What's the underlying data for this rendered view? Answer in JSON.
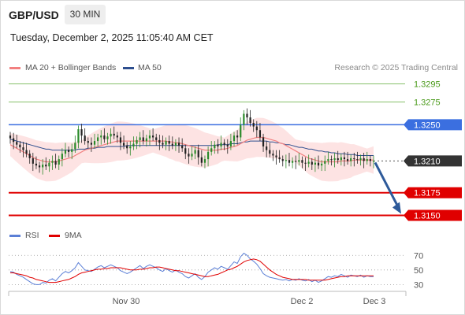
{
  "header": {
    "pair": "GBP/USD",
    "timeframe": "30 MIN",
    "datetime": "Tuesday, December 2, 2025 11:05:40 AM CET"
  },
  "legend": {
    "ma20": "MA 20 + Bollinger Bands",
    "ma50": "MA 50",
    "credit": "Research © 2025 Trading Central"
  },
  "rsi_legend": {
    "rsi": "RSI",
    "ma9": "9MA"
  },
  "colors": {
    "ma20": "#f28080",
    "ma50": "#2e4f8f",
    "bollinger": "#fde0e0",
    "resistance": "#86c06a",
    "pivot_blue": "#3b6fe0",
    "support": "#e00000",
    "current": "#333333",
    "candle_up": "#2a8a2a",
    "candle_down": "#222222",
    "rsi": "#5b7fd6",
    "rsi_ma": "#e00000",
    "arrow": "#2e5a9a"
  },
  "chart_data": [
    {
      "type": "candlestick",
      "title": "",
      "y_range": [
        1.314,
        1.3305
      ],
      "levels": [
        {
          "label": "1.3295",
          "value": 1.3295,
          "kind": "resistance"
        },
        {
          "label": "1.3275",
          "value": 1.3275,
          "kind": "resistance"
        },
        {
          "label": "1.3250",
          "value": 1.325,
          "kind": "pivot"
        },
        {
          "label": "1.3210",
          "value": 1.321,
          "kind": "current"
        },
        {
          "label": "1.3175",
          "value": 1.3175,
          "kind": "support"
        },
        {
          "label": "1.3150",
          "value": 1.315,
          "kind": "support"
        }
      ],
      "x_ticks": [
        "Nov 30",
        "Dec 2",
        "Dec 3"
      ],
      "close": [
        1.3235,
        1.3231,
        1.3228,
        1.3225,
        1.3222,
        1.3218,
        1.3213,
        1.3207,
        1.3205,
        1.3203,
        1.3206,
        1.3204,
        1.3208,
        1.321,
        1.3206,
        1.3212,
        1.3218,
        1.3222,
        1.322,
        1.3223,
        1.323,
        1.3245,
        1.3238,
        1.3232,
        1.323,
        1.3228,
        1.3232,
        1.3236,
        1.3238,
        1.3234,
        1.3237,
        1.324,
        1.3238,
        1.3236,
        1.323,
        1.3227,
        1.3224,
        1.3226,
        1.3229,
        1.3233,
        1.3236,
        1.3232,
        1.3235,
        1.3238,
        1.3236,
        1.3233,
        1.323,
        1.3228,
        1.3232,
        1.3229,
        1.3227,
        1.323,
        1.3227,
        1.3224,
        1.3218,
        1.3215,
        1.3218,
        1.3222,
        1.3214,
        1.3208,
        1.3212,
        1.322,
        1.3224,
        1.3228,
        1.3226,
        1.323,
        1.3228,
        1.3226,
        1.3232,
        1.3238,
        1.3236,
        1.325,
        1.3262,
        1.3258,
        1.3252,
        1.3248,
        1.3244,
        1.3236,
        1.3226,
        1.3222,
        1.3218,
        1.3216,
        1.3214,
        1.3212,
        1.321,
        1.3211,
        1.3208,
        1.321,
        1.3209,
        1.3211,
        1.3208,
        1.3207,
        1.3209,
        1.3206,
        1.3208,
        1.3205,
        1.3207,
        1.321,
        1.3212,
        1.3211,
        1.3213,
        1.3211,
        1.3214,
        1.3212,
        1.321,
        1.3213,
        1.3212,
        1.3211,
        1.3213,
        1.321,
        1.3212,
        1.321,
        1.321
      ],
      "ma20": [
        1.3228,
        1.3226,
        1.3224,
        1.3222,
        1.322,
        1.3218,
        1.3216,
        1.3214,
        1.3212,
        1.3211,
        1.321,
        1.3209,
        1.3209,
        1.3209,
        1.3209,
        1.321,
        1.3211,
        1.3212,
        1.3213,
        1.3214,
        1.3216,
        1.3218,
        1.322,
        1.3222,
        1.3223,
        1.3224,
        1.3225,
        1.3226,
        1.3227,
        1.3228,
        1.3229,
        1.323,
        1.3231,
        1.3232,
        1.3232,
        1.3232,
        1.3232,
        1.3232,
        1.3232,
        1.3232,
        1.3232,
        1.3232,
        1.3232,
        1.3232,
        1.3232,
        1.3232,
        1.3232,
        1.3232,
        1.3232,
        1.3231,
        1.3231,
        1.323,
        1.323,
        1.3229,
        1.3228,
        1.3227,
        1.3226,
        1.3225,
        1.3224,
        1.3223,
        1.3222,
        1.3222,
        1.3222,
        1.3222,
        1.3222,
        1.3223,
        1.3223,
        1.3224,
        1.3225,
        1.3226,
        1.3227,
        1.3229,
        1.3231,
        1.3233,
        1.3234,
        1.3235,
        1.3236,
        1.3236,
        1.3236,
        1.3235,
        1.3234,
        1.3233,
        1.3232,
        1.323,
        1.3229,
        1.3227,
        1.3225,
        1.3223,
        1.3221,
        1.3219,
        1.3217,
        1.3215,
        1.3213,
        1.3212,
        1.3211,
        1.321,
        1.3209,
        1.3209,
        1.3209,
        1.3209,
        1.3209,
        1.3209,
        1.321,
        1.321,
        1.321,
        1.321,
        1.3211,
        1.3211,
        1.3211,
        1.3211,
        1.3211,
        1.3211,
        1.3211
      ],
      "ma50": [
        1.3234,
        1.3233,
        1.3232,
        1.3231,
        1.323,
        1.3229,
        1.3228,
        1.3227,
        1.3226,
        1.3225,
        1.3224,
        1.3223,
        1.3223,
        1.3222,
        1.3222,
        1.3222,
        1.3222,
        1.3222,
        1.3222,
        1.3222,
        1.3222,
        1.3223,
        1.3223,
        1.3223,
        1.3224,
        1.3224,
        1.3224,
        1.3225,
        1.3225,
        1.3225,
        1.3226,
        1.3226,
        1.3226,
        1.3226,
        1.3226,
        1.3226,
        1.3227,
        1.3227,
        1.3227,
        1.3227,
        1.3227,
        1.3227,
        1.3227,
        1.3227,
        1.3227,
        1.3227,
        1.3227,
        1.3227,
        1.3227,
        1.3227,
        1.3227,
        1.3227,
        1.3227,
        1.3227,
        1.3227,
        1.3227,
        1.3227,
        1.3227,
        1.3227,
        1.3227,
        1.3227,
        1.3227,
        1.3227,
        1.3227,
        1.3228,
        1.3228,
        1.3228,
        1.3228,
        1.3229,
        1.3229,
        1.3229,
        1.323,
        1.3231,
        1.3231,
        1.3232,
        1.3232,
        1.3232,
        1.3232,
        1.3232,
        1.3232,
        1.3231,
        1.3231,
        1.323,
        1.323,
        1.3229,
        1.3228,
        1.3228,
        1.3227,
        1.3226,
        1.3225,
        1.3225,
        1.3224,
        1.3223,
        1.3223,
        1.3222,
        1.3221,
        1.3221,
        1.322,
        1.322,
        1.3219,
        1.3219,
        1.3218,
        1.3218,
        1.3218,
        1.3217,
        1.3217,
        1.3217,
        1.3216,
        1.3216,
        1.3216,
        1.3216,
        1.3216,
        1.3216
      ],
      "bb_width": 0.0018,
      "forecast": {
        "from": 1.321,
        "to": 1.315,
        "direction": "down"
      }
    },
    {
      "type": "line",
      "title": "",
      "y_range": [
        25,
        80
      ],
      "y_ticks": [
        70,
        50,
        30
      ],
      "rsi": [
        48,
        47,
        44,
        42,
        40,
        37,
        34,
        31,
        30,
        30,
        33,
        32,
        36,
        38,
        35,
        40,
        45,
        48,
        46,
        49,
        53,
        60,
        55,
        50,
        49,
        48,
        51,
        54,
        56,
        53,
        55,
        57,
        55,
        53,
        49,
        47,
        45,
        47,
        50,
        53,
        56,
        52,
        55,
        57,
        55,
        53,
        50,
        48,
        52,
        49,
        47,
        50,
        47,
        45,
        41,
        39,
        42,
        45,
        40,
        37,
        41,
        47,
        50,
        53,
        51,
        55,
        53,
        51,
        56,
        61,
        59,
        68,
        73,
        70,
        65,
        62,
        58,
        52,
        45,
        42,
        40,
        39,
        38,
        37,
        36,
        37,
        35,
        37,
        36,
        38,
        36,
        35,
        37,
        34,
        36,
        33,
        35,
        38,
        41,
        40,
        42,
        41,
        44,
        42,
        40,
        43,
        42,
        41,
        43,
        40,
        42,
        41,
        41
      ],
      "rsi_ma": [
        46,
        46,
        45,
        44,
        43,
        42,
        40,
        39,
        37,
        36,
        35,
        34,
        33,
        33,
        33,
        34,
        35,
        36,
        37,
        39,
        41,
        44,
        46,
        47,
        48,
        49,
        50,
        51,
        51,
        52,
        52,
        53,
        53,
        53,
        53,
        52,
        51,
        50,
        50,
        50,
        51,
        51,
        52,
        53,
        53,
        54,
        54,
        53,
        52,
        51,
        50,
        49,
        49,
        48,
        47,
        46,
        45,
        44,
        43,
        42,
        41,
        41,
        42,
        43,
        44,
        46,
        48,
        50,
        51,
        53,
        55,
        58,
        61,
        63,
        64,
        65,
        64,
        62,
        58,
        54,
        50,
        47,
        44,
        42,
        40,
        39,
        38,
        37,
        37,
        37,
        37,
        37,
        36,
        36,
        36,
        36,
        36,
        36,
        37,
        38,
        39,
        40,
        41,
        41,
        42,
        42,
        42,
        42,
        42,
        42,
        42,
        42,
        42
      ]
    }
  ]
}
